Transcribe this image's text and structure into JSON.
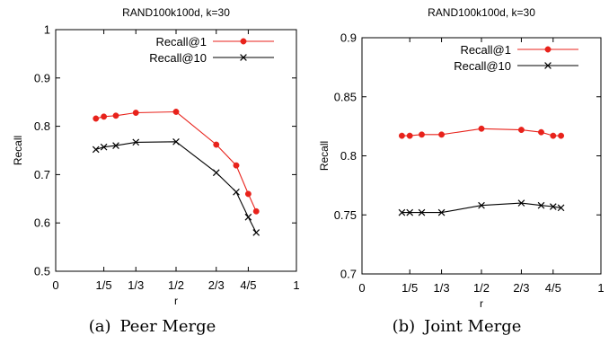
{
  "chart_data": [
    {
      "type": "line",
      "title": "RAND100k100d, k=30",
      "xlabel": "r",
      "ylabel": "Recall",
      "xlim": [
        0,
        1
      ],
      "ylim": [
        0.5,
        1
      ],
      "xticks": [
        0,
        0.2,
        0.333,
        0.5,
        0.667,
        0.8,
        1
      ],
      "xticklabels": [
        "0",
        "1/5",
        "1/3",
        "1/2",
        "2/3",
        "4/5",
        "1"
      ],
      "yticks": [
        0.5,
        0.6,
        0.7,
        0.8,
        0.9,
        1
      ],
      "yticklabels": [
        "0.5",
        "0.6",
        "0.7",
        "0.8",
        "0.9",
        "1"
      ],
      "grid": false,
      "legend_position": "top-right",
      "caption_tag": "(a)",
      "caption_text": "Peer Merge",
      "series": [
        {
          "name": "Recall@1",
          "color": "#e8221b",
          "marker": "circle",
          "x": [
            0.167,
            0.2,
            0.25,
            0.333,
            0.5,
            0.667,
            0.75,
            0.8,
            0.833
          ],
          "y": [
            0.816,
            0.82,
            0.822,
            0.828,
            0.83,
            0.762,
            0.719,
            0.66,
            0.624
          ]
        },
        {
          "name": "Recall@10",
          "color": "#000000",
          "marker": "x",
          "x": [
            0.167,
            0.2,
            0.25,
            0.333,
            0.5,
            0.667,
            0.75,
            0.8,
            0.833
          ],
          "y": [
            0.752,
            0.757,
            0.76,
            0.767,
            0.768,
            0.704,
            0.664,
            0.612,
            0.58
          ]
        }
      ]
    },
    {
      "type": "line",
      "title": "RAND100k100d, k=30",
      "xlabel": "r",
      "ylabel": "Recall",
      "xlim": [
        0,
        1
      ],
      "ylim": [
        0.7,
        0.9
      ],
      "xticks": [
        0,
        0.2,
        0.333,
        0.5,
        0.667,
        0.8,
        1
      ],
      "xticklabels": [
        "0",
        "1/5",
        "1/3",
        "1/2",
        "2/3",
        "4/5",
        "1"
      ],
      "yticks": [
        0.7,
        0.75,
        0.8,
        0.85,
        0.9
      ],
      "yticklabels": [
        "0.7",
        "0.75",
        "0.8",
        "0.85",
        "0.9"
      ],
      "grid": false,
      "legend_position": "top-right",
      "caption_tag": "(b)",
      "caption_text": "Joint Merge",
      "series": [
        {
          "name": "Recall@1",
          "color": "#e8221b",
          "marker": "circle",
          "x": [
            0.167,
            0.2,
            0.25,
            0.333,
            0.5,
            0.667,
            0.75,
            0.8,
            0.833
          ],
          "y": [
            0.817,
            0.817,
            0.818,
            0.818,
            0.823,
            0.822,
            0.82,
            0.817,
            0.817
          ]
        },
        {
          "name": "Recall@10",
          "color": "#000000",
          "marker": "x",
          "x": [
            0.167,
            0.2,
            0.25,
            0.333,
            0.5,
            0.667,
            0.75,
            0.8,
            0.833
          ],
          "y": [
            0.752,
            0.752,
            0.752,
            0.752,
            0.758,
            0.76,
            0.758,
            0.757,
            0.756
          ]
        }
      ]
    }
  ]
}
